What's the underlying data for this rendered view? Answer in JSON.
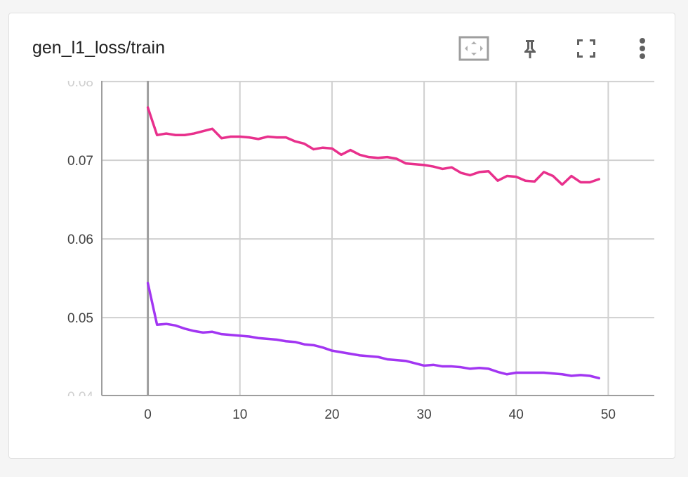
{
  "card": {
    "title": "gen_l1_loss/train"
  },
  "toolbar": {
    "buttons": [
      {
        "name": "fit-domain-button",
        "icon": "fit-to-data-icon"
      },
      {
        "name": "pin-button",
        "icon": "pin-icon"
      },
      {
        "name": "fullscreen-button",
        "icon": "fullscreen-icon"
      },
      {
        "name": "more-options-button",
        "icon": "more-vert-icon"
      }
    ]
  },
  "colors": {
    "grid": "#d0d0d0",
    "axis": "#9e9e9e",
    "series_pink": "#e8308c",
    "series_purple": "#a236f2"
  },
  "chart_data": {
    "type": "line",
    "title": "gen_l1_loss/train",
    "xlabel": "",
    "ylabel": "",
    "xlim": [
      -5,
      55
    ],
    "ylim": [
      0.04,
      0.08
    ],
    "x_ticks": [
      0,
      10,
      20,
      30,
      40,
      50
    ],
    "x_tick_labels": [
      "0",
      "10",
      "20",
      "30",
      "40",
      "50"
    ],
    "y_ticks": [
      0.04,
      0.05,
      0.06,
      0.07,
      0.08
    ],
    "y_tick_labels": [
      "0.04",
      "0.05",
      "0.06",
      "0.07",
      "0.08"
    ],
    "grid": true,
    "series": [
      {
        "color": "#e8308c",
        "x": [
          0,
          1,
          2,
          3,
          4,
          5,
          6,
          7,
          8,
          9,
          10,
          11,
          12,
          13,
          14,
          15,
          16,
          17,
          18,
          19,
          20,
          21,
          22,
          23,
          24,
          25,
          26,
          27,
          28,
          29,
          30,
          31,
          32,
          33,
          34,
          35,
          36,
          37,
          38,
          39,
          40,
          41,
          42,
          43,
          44,
          45,
          46,
          47,
          48,
          49
        ],
        "values": [
          0.0767,
          0.0732,
          0.0734,
          0.0732,
          0.0732,
          0.0734,
          0.0737,
          0.074,
          0.0728,
          0.073,
          0.073,
          0.0729,
          0.0727,
          0.073,
          0.0729,
          0.0729,
          0.0724,
          0.0721,
          0.0714,
          0.0716,
          0.0715,
          0.0707,
          0.0713,
          0.0707,
          0.0704,
          0.0703,
          0.0704,
          0.0702,
          0.0696,
          0.0695,
          0.0694,
          0.0692,
          0.0689,
          0.0691,
          0.0684,
          0.0681,
          0.0685,
          0.0686,
          0.0674,
          0.068,
          0.0679,
          0.0674,
          0.0673,
          0.0685,
          0.068,
          0.0669,
          0.068,
          0.0672,
          0.0672,
          0.0676
        ]
      },
      {
        "color": "#a236f2",
        "x": [
          0,
          1,
          2,
          3,
          4,
          5,
          6,
          7,
          8,
          9,
          10,
          11,
          12,
          13,
          14,
          15,
          16,
          17,
          18,
          19,
          20,
          21,
          22,
          23,
          24,
          25,
          26,
          27,
          28,
          29,
          30,
          31,
          32,
          33,
          34,
          35,
          36,
          37,
          38,
          39,
          40,
          41,
          42,
          43,
          44,
          45,
          46,
          47,
          48,
          49
        ],
        "values": [
          0.0544,
          0.0491,
          0.0492,
          0.049,
          0.0486,
          0.0483,
          0.0481,
          0.0482,
          0.0479,
          0.0478,
          0.0477,
          0.0476,
          0.0474,
          0.0473,
          0.0472,
          0.047,
          0.0469,
          0.0466,
          0.0465,
          0.0462,
          0.0458,
          0.0456,
          0.0454,
          0.0452,
          0.0451,
          0.045,
          0.0447,
          0.0446,
          0.0445,
          0.0442,
          0.0439,
          0.044,
          0.0438,
          0.0438,
          0.0437,
          0.0435,
          0.0436,
          0.0435,
          0.0431,
          0.0428,
          0.043,
          0.043,
          0.043,
          0.043,
          0.0429,
          0.0428,
          0.0426,
          0.0427,
          0.0426,
          0.0423
        ]
      }
    ]
  }
}
